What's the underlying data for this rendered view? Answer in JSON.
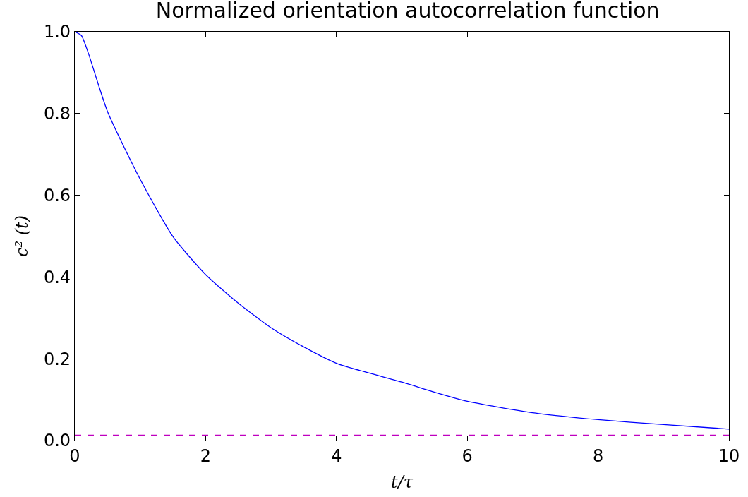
{
  "chart_data": {
    "type": "line",
    "title": "Normalized orientation autocorrelation function",
    "xlabel": "t/τ",
    "ylabel": "c² (t)",
    "x": [
      0,
      0.1,
      0.2,
      0.5,
      1,
      1.5,
      2,
      2.5,
      3,
      3.5,
      4,
      4.5,
      5,
      5.5,
      6,
      7,
      8,
      9,
      10
    ],
    "series": [
      {
        "color": "#0000ff",
        "values": [
          1.0,
          0.991,
          0.951,
          0.805,
          0.639,
          0.499,
          0.406,
          0.336,
          0.276,
          0.229,
          0.189,
          0.165,
          0.143,
          0.118,
          0.096,
          0.068,
          0.051,
          0.039,
          0.028
        ]
      }
    ],
    "ref_lines": [
      {
        "axis": "y",
        "value": 0.013,
        "color": "#bf00bf",
        "line_style": "dashed"
      }
    ],
    "xlim": [
      0,
      10
    ],
    "ylim": [
      0,
      1.0
    ],
    "xticks": [
      0,
      2,
      4,
      6,
      8,
      10
    ],
    "yticks": [
      {
        "value": 0,
        "label": "0.0"
      },
      0.2,
      0.4,
      0.6,
      0.8,
      {
        "value": 1.0,
        "label": "1.0"
      }
    ],
    "marker": "none",
    "line_style": "solid"
  }
}
